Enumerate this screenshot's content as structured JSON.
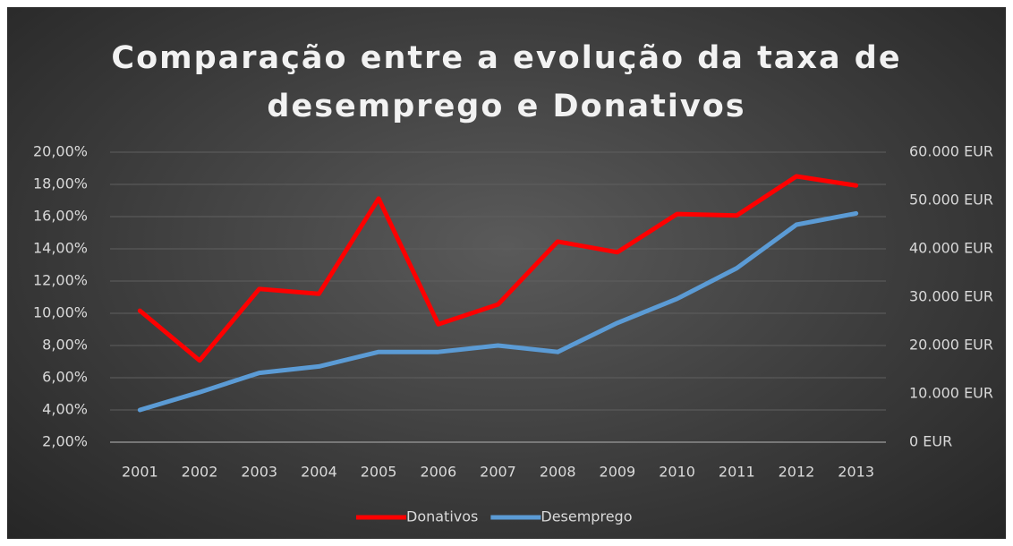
{
  "chart_data": {
    "type": "line",
    "title": "Comparação entre a evolução da taxa de desemprego e Donativos",
    "categories": [
      "2001",
      "2002",
      "2003",
      "2004",
      "2005",
      "2006",
      "2007",
      "2008",
      "2009",
      "2010",
      "2011",
      "2012",
      "2013"
    ],
    "series": [
      {
        "name": "Donativos",
        "color": "#ff0000",
        "axis": "y2",
        "values": [
          27200,
          16900,
          31700,
          30700,
          50400,
          24400,
          28500,
          41500,
          39300,
          47200,
          46900,
          55000,
          53100
        ]
      },
      {
        "name": "Desemprego",
        "color": "#5b9bd5",
        "values": [
          4.0,
          5.1,
          6.3,
          6.7,
          7.6,
          7.6,
          8.0,
          7.6,
          9.4,
          10.9,
          12.8,
          15.5,
          16.2
        ]
      }
    ],
    "ylim": [
      2,
      20
    ],
    "yticks": [
      {
        "value": 2,
        "label": "2,00%"
      },
      {
        "value": 4,
        "label": "4,00%"
      },
      {
        "value": 6,
        "label": "6,00%"
      },
      {
        "value": 8,
        "label": "8,00%"
      },
      {
        "value": 10,
        "label": "10,00%"
      },
      {
        "value": 12,
        "label": "12,00%"
      },
      {
        "value": 14,
        "label": "14,00%"
      },
      {
        "value": 16,
        "label": "16,00%"
      },
      {
        "value": 18,
        "label": "18,00%"
      },
      {
        "value": 20,
        "label": "20,00%"
      }
    ],
    "y2lim": [
      0,
      60000
    ],
    "y2ticks": [
      {
        "value": 0,
        "label": "0 EUR"
      },
      {
        "value": 10000,
        "label": "10.000 EUR"
      },
      {
        "value": 20000,
        "label": "20.000 EUR"
      },
      {
        "value": 30000,
        "label": "30.000 EUR"
      },
      {
        "value": 40000,
        "label": "40.000 EUR"
      },
      {
        "value": 50000,
        "label": "50.000 EUR"
      },
      {
        "value": 60000,
        "label": "60.000 EUR"
      }
    ],
    "grid": true
  }
}
